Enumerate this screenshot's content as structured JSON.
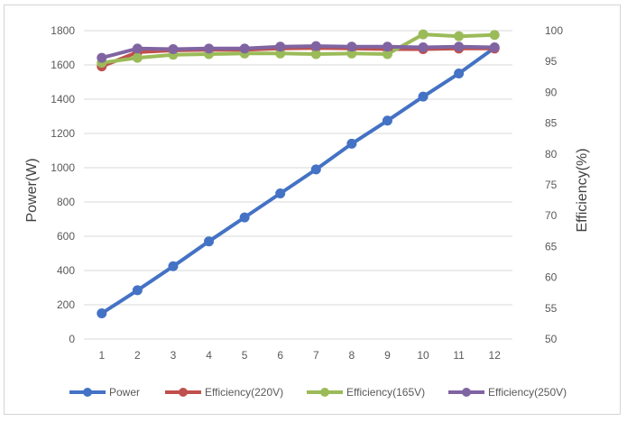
{
  "chart_data": {
    "type": "line",
    "title": "",
    "x": [
      1,
      2,
      3,
      4,
      5,
      6,
      7,
      8,
      9,
      10,
      11,
      12
    ],
    "x_ticks": [
      "1",
      "2",
      "3",
      "4",
      "5",
      "6",
      "7",
      "8",
      "9",
      "10",
      "11",
      "12"
    ],
    "ylabel": "Power(W)",
    "y2label": "Efficiency(%)",
    "ylim": [
      0,
      1800
    ],
    "y2lim": [
      50,
      100
    ],
    "y_ticks": [
      0,
      200,
      400,
      600,
      800,
      1000,
      1200,
      1400,
      1600,
      1800
    ],
    "y2_ticks": [
      50,
      55,
      60,
      65,
      70,
      75,
      80,
      85,
      90,
      95,
      100
    ],
    "grid": true,
    "legend_position": "bottom",
    "series": [
      {
        "name": "Power",
        "axis": "left",
        "color": "#4472c4",
        "values": [
          150,
          285,
          425,
          570,
          710,
          850,
          990,
          1140,
          1275,
          1415,
          1550,
          1700
        ]
      },
      {
        "name": "Efficiency(220V)",
        "axis": "right",
        "color": "#c0504d",
        "values": [
          94.2,
          96.5,
          96.8,
          96.9,
          96.9,
          97.1,
          97.2,
          97.1,
          97.0,
          97.0,
          97.1,
          97.1
        ]
      },
      {
        "name": "Efficiency(165V)",
        "axis": "right",
        "color": "#9bbb59",
        "values": [
          94.8,
          95.6,
          96.1,
          96.2,
          96.3,
          96.3,
          96.2,
          96.3,
          96.2,
          99.4,
          99.1,
          99.3
        ]
      },
      {
        "name": "Efficiency(250V)",
        "axis": "right",
        "color": "#8064a2",
        "values": [
          95.6,
          97.1,
          97.0,
          97.1,
          97.1,
          97.4,
          97.5,
          97.4,
          97.4,
          97.3,
          97.4,
          97.3
        ]
      }
    ]
  }
}
